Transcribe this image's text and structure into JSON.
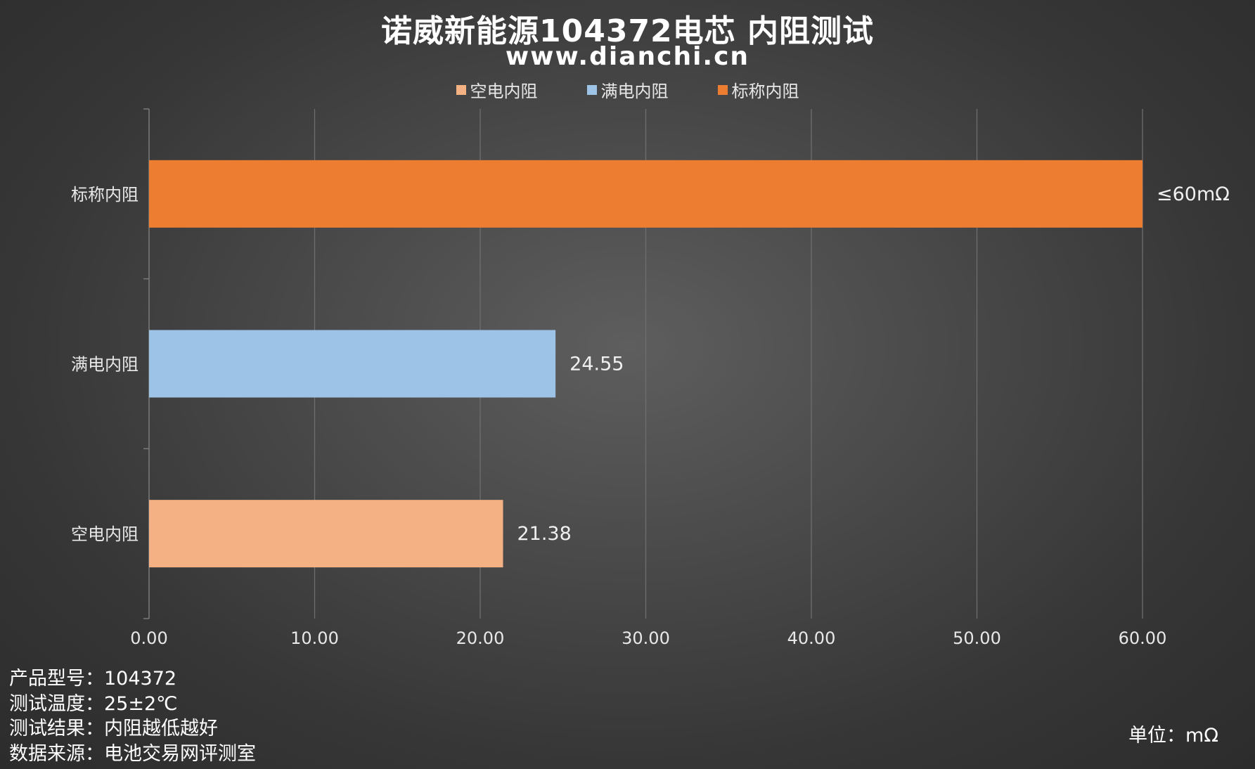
{
  "title": "诺威新能源104372电芯 内阻测试",
  "subtitle": "www.dianchi.cn",
  "colors": {
    "empty": "#F4B183",
    "full": "#9DC3E6",
    "nominal": "#ED7D31",
    "grid": "#6e6e6e"
  },
  "legend": [
    {
      "label": "空电内阻",
      "color": "#F4B183"
    },
    {
      "label": "满电内阻",
      "color": "#9DC3E6"
    },
    {
      "label": "标称内阻",
      "color": "#ED7D31"
    }
  ],
  "chart_data": {
    "type": "bar",
    "orientation": "horizontal",
    "categories": [
      "标称内阻",
      "满电内阻",
      "空电内阻"
    ],
    "series": [
      {
        "name": "标称内阻",
        "category": "标称内阻",
        "value": 60,
        "label": "≤60mΩ",
        "color": "#ED7D31"
      },
      {
        "name": "满电内阻",
        "category": "满电内阻",
        "value": 24.55,
        "label": "24.55",
        "color": "#9DC3E6"
      },
      {
        "name": "空电内阻",
        "category": "空电内阻",
        "value": 21.38,
        "label": "21.38",
        "color": "#F4B183"
      }
    ],
    "xlim": [
      0,
      60
    ],
    "xticks": [
      "0.00",
      "10.00",
      "20.00",
      "30.00",
      "40.00",
      "50.00",
      "60.00"
    ],
    "grid": true,
    "legend_position": "top"
  },
  "notes": [
    "产品型号：104372",
    "测试温度：25±2℃",
    "测试结果：内阻越低越好",
    "数据来源：电池交易网评测室"
  ],
  "unit": "单位：mΩ"
}
